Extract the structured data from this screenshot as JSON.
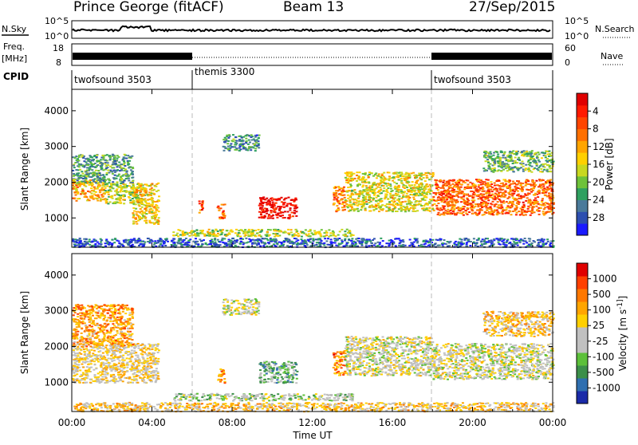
{
  "header": {
    "title": "Prince George (fitACF)",
    "beam": "Beam 13",
    "date": "27/Sep/2015"
  },
  "strips": {
    "nsky_label": "N.Sky",
    "nsearch_label": "N.Search",
    "left_ticks": [
      "10^5",
      "10^0"
    ],
    "right_ticks": [
      "10^5",
      "10^0"
    ],
    "freq_label_1": "Freq.",
    "freq_label_2": "[MHz]",
    "freq_ticks": [
      "18",
      "8"
    ],
    "nave_label": "Nave",
    "nave_ticks": [
      "60",
      "0"
    ],
    "cpid_label": "CPID",
    "cpid_segments": [
      {
        "label": "twofsound 3503",
        "start": 0,
        "end": 6
      },
      {
        "label": "themis 3300",
        "start": 6,
        "end": 18
      },
      {
        "label": "twofsound 3503",
        "start": 18,
        "end": 24
      }
    ]
  },
  "chart_data": [
    {
      "type": "heatmap",
      "name": "power",
      "xlabel": "",
      "ylabel": "Slant Range [km]",
      "xlim": [
        0,
        24
      ],
      "ylim": [
        180,
        4600
      ],
      "y_ticks": [
        "1000",
        "2000",
        "3000",
        "4000"
      ],
      "colorbar": {
        "label": "Power [dB]",
        "ticks": [
          "4",
          "8",
          "12",
          "16",
          "20",
          "24",
          "28"
        ],
        "colors": [
          "#1a1aff",
          "#2d4fb0",
          "#4a7a9a",
          "#2fa060",
          "#6ec23a",
          "#c8d820",
          "#ffd000",
          "#ffa500",
          "#ff7000",
          "#ff4500",
          "#ff1a00",
          "#e00000"
        ]
      },
      "regions": [
        {
          "t0": 0.0,
          "t1": 1.6,
          "r0": 1500,
          "r1": 2100,
          "level": 0.6
        },
        {
          "t0": 1.6,
          "t1": 3.6,
          "r0": 1400,
          "r1": 2000,
          "level": 0.45
        },
        {
          "t0": 3.0,
          "t1": 4.3,
          "r0": 850,
          "r1": 2000,
          "level": 0.55
        },
        {
          "t0": 0.0,
          "t1": 3.0,
          "r0": 2000,
          "r1": 2800,
          "level": 0.3
        },
        {
          "t0": 6.3,
          "t1": 6.5,
          "r0": 1100,
          "r1": 1500,
          "level": 0.8
        },
        {
          "t0": 7.2,
          "t1": 7.6,
          "r0": 1000,
          "r1": 1400,
          "level": 0.75
        },
        {
          "t0": 9.3,
          "t1": 11.2,
          "r0": 1000,
          "r1": 1600,
          "level": 0.95
        },
        {
          "t0": 13.0,
          "t1": 13.6,
          "r0": 1200,
          "r1": 1900,
          "level": 0.7
        },
        {
          "t0": 13.6,
          "t1": 18.0,
          "r0": 1200,
          "r1": 2300,
          "level": 0.5
        },
        {
          "t0": 18.0,
          "t1": 24.0,
          "r0": 1100,
          "r1": 2100,
          "level": 0.75
        },
        {
          "t0": 20.5,
          "t1": 24.0,
          "r0": 2300,
          "r1": 2900,
          "level": 0.35
        },
        {
          "t0": 5.0,
          "t1": 14.0,
          "r0": 500,
          "r1": 700,
          "level": 0.45
        },
        {
          "t0": 7.5,
          "t1": 9.3,
          "r0": 2900,
          "r1": 3350,
          "level": 0.25
        },
        {
          "t0": 0.0,
          "t1": 24.0,
          "r0": 200,
          "r1": 450,
          "level": 0.15
        }
      ]
    },
    {
      "type": "heatmap",
      "name": "velocity",
      "xlabel": "Time UT",
      "ylabel": "Slant Range [km]",
      "xlim": [
        0,
        24
      ],
      "ylim": [
        180,
        4600
      ],
      "y_ticks": [
        "1000",
        "2000",
        "3000",
        "4000"
      ],
      "x_ticks": [
        "00:00",
        "04:00",
        "08:00",
        "12:00",
        "16:00",
        "20:00",
        "00:00"
      ],
      "colorbar": {
        "label": "Velocity [m s^-1]",
        "ticks": [
          "1000",
          "500",
          "100",
          "25",
          "-25",
          "-100",
          "-500",
          "-1000"
        ],
        "colors": [
          "#1a2aa8",
          "#2f6fb0",
          "#3c8f4a",
          "#5cc03a",
          "#c0c0c0",
          "#c0c0c0",
          "#ffd000",
          "#ffa500",
          "#ff7800",
          "#ff4000",
          "#e00000"
        ]
      },
      "regions": [
        {
          "t0": 0.0,
          "t1": 4.3,
          "r0": 1000,
          "r1": 2100,
          "level": 0.55
        },
        {
          "t0": 0.0,
          "t1": 3.0,
          "r0": 2000,
          "r1": 3200,
          "level": 0.7
        },
        {
          "t0": 7.2,
          "t1": 7.6,
          "r0": 1000,
          "r1": 1400,
          "level": 0.7
        },
        {
          "t0": 9.3,
          "t1": 11.2,
          "r0": 1000,
          "r1": 1600,
          "level": 0.3
        },
        {
          "t0": 13.0,
          "t1": 13.6,
          "r0": 1200,
          "r1": 1900,
          "level": 0.75
        },
        {
          "t0": 13.6,
          "t1": 18.0,
          "r0": 1200,
          "r1": 2300,
          "level": 0.48
        },
        {
          "t0": 18.0,
          "t1": 24.0,
          "r0": 1100,
          "r1": 2100,
          "level": 0.48
        },
        {
          "t0": 20.5,
          "t1": 24.0,
          "r0": 2300,
          "r1": 3000,
          "level": 0.6
        },
        {
          "t0": 5.0,
          "t1": 14.0,
          "r0": 500,
          "r1": 700,
          "level": 0.4
        },
        {
          "t0": 7.5,
          "t1": 9.3,
          "r0": 2900,
          "r1": 3350,
          "level": 0.48
        },
        {
          "t0": 0.0,
          "t1": 24.0,
          "r0": 200,
          "r1": 450,
          "level": 0.6
        }
      ]
    }
  ]
}
